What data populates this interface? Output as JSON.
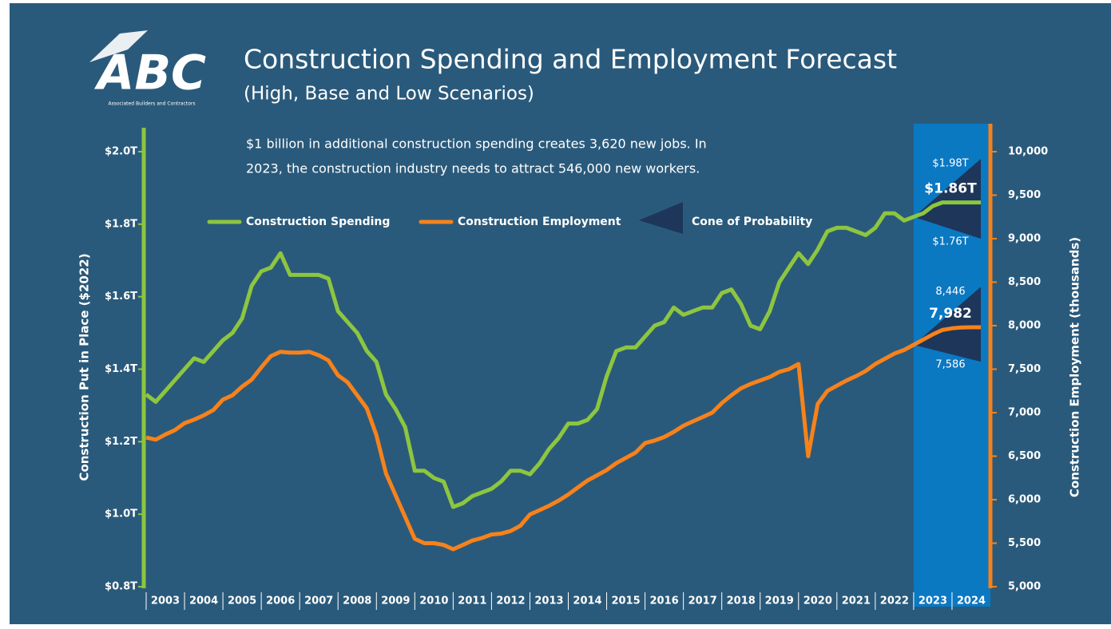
{
  "logo": {
    "text": "ABC",
    "subtext": "Associated Builders and Contractors"
  },
  "chart_data": {
    "type": "line",
    "title": "Construction Spending and Employment Forecast",
    "subtitle": "(High, Base and Low Scenarios)",
    "note": [
      "$1 billion in additional construction spending creates 3,620 new jobs. In",
      "2023, the construction industry needs to attract 546,000 new workers."
    ],
    "ylabel": "Construction Put in Place ($2022)",
    "y2label": "Construction Employment (thousands)",
    "xlim": [
      2003,
      2025
    ],
    "xticks": [
      2003,
      2004,
      2005,
      2006,
      2007,
      2008,
      2009,
      2010,
      2011,
      2012,
      2013,
      2014,
      2015,
      2016,
      2017,
      2018,
      2019,
      2020,
      2021,
      2022,
      2023,
      2024
    ],
    "ylim": [
      0.8,
      2.0
    ],
    "yticks": [
      {
        "value": 0.8,
        "label": "$0.8T"
      },
      {
        "value": 1.0,
        "label": "$1.0T"
      },
      {
        "value": 1.2,
        "label": "$1.2T"
      },
      {
        "value": 1.4,
        "label": "$1.4T"
      },
      {
        "value": 1.6,
        "label": "$1.6T"
      },
      {
        "value": 1.8,
        "label": "$1.8T"
      },
      {
        "value": 2.0,
        "label": "$2.0T"
      }
    ],
    "y2lim": [
      5000,
      10000
    ],
    "y2ticks": [
      {
        "value": 5000,
        "label": "5,000"
      },
      {
        "value": 5500,
        "label": "5,500"
      },
      {
        "value": 6000,
        "label": "6,000"
      },
      {
        "value": 6500,
        "label": "6,500"
      },
      {
        "value": 7000,
        "label": "7,000"
      },
      {
        "value": 7500,
        "label": "7,500"
      },
      {
        "value": 8000,
        "label": "8,000"
      },
      {
        "value": 8500,
        "label": "8,500"
      },
      {
        "value": 9000,
        "label": "9,000"
      },
      {
        "value": 9500,
        "label": "9,500"
      },
      {
        "value": 10000,
        "label": "10,000"
      }
    ],
    "x": [
      2003,
      2003.25,
      2003.5,
      2003.75,
      2004,
      2004.25,
      2004.5,
      2004.75,
      2005,
      2005.25,
      2005.5,
      2005.75,
      2006,
      2006.25,
      2006.5,
      2006.75,
      2007,
      2007.25,
      2007.5,
      2007.75,
      2008,
      2008.25,
      2008.5,
      2008.75,
      2009,
      2009.25,
      2009.5,
      2009.75,
      2010,
      2010.25,
      2010.5,
      2010.75,
      2011,
      2011.25,
      2011.5,
      2011.75,
      2012,
      2012.25,
      2012.5,
      2012.75,
      2013,
      2013.25,
      2013.5,
      2013.75,
      2014,
      2014.25,
      2014.5,
      2014.75,
      2015,
      2015.25,
      2015.5,
      2015.75,
      2016,
      2016.25,
      2016.5,
      2016.75,
      2017,
      2017.25,
      2017.5,
      2017.75,
      2018,
      2018.25,
      2018.5,
      2018.75,
      2019,
      2019.25,
      2019.5,
      2019.75,
      2020,
      2020.25,
      2020.5,
      2020.75,
      2021,
      2021.25,
      2021.5,
      2021.75,
      2022,
      2022.25,
      2022.5,
      2022.75,
      2023,
      2023.25,
      2023.5,
      2023.75,
      2024,
      2024.25,
      2024.5,
      2024.75
    ],
    "series": [
      {
        "name": "Construction Spending",
        "color": "#8dc63f",
        "last_value_label": "$1.86T",
        "values": [
          1.33,
          1.31,
          1.34,
          1.37,
          1.4,
          1.43,
          1.42,
          1.45,
          1.48,
          1.5,
          1.54,
          1.63,
          1.67,
          1.68,
          1.72,
          1.66,
          1.66,
          1.66,
          1.66,
          1.65,
          1.56,
          1.53,
          1.5,
          1.45,
          1.42,
          1.33,
          1.29,
          1.24,
          1.12,
          1.12,
          1.1,
          1.09,
          1.02,
          1.03,
          1.05,
          1.06,
          1.07,
          1.09,
          1.12,
          1.12,
          1.11,
          1.14,
          1.18,
          1.21,
          1.25,
          1.25,
          1.26,
          1.29,
          1.38,
          1.45,
          1.46,
          1.46,
          1.49,
          1.52,
          1.53,
          1.57,
          1.55,
          1.56,
          1.57,
          1.57,
          1.61,
          1.62,
          1.58,
          1.52,
          1.51,
          1.56,
          1.64,
          1.68,
          1.72,
          1.69,
          1.73,
          1.78,
          1.79,
          1.79,
          1.78,
          1.77,
          1.79,
          1.83,
          1.83,
          1.81,
          1.82,
          1.83,
          1.85,
          1.86,
          1.86,
          1.86,
          1.86,
          1.86
        ]
      },
      {
        "name": "Construction Employment",
        "color": "#f7821b",
        "axis": "y2",
        "last_value_label": "7,982",
        "values": [
          6715,
          6690,
          6750,
          6800,
          6880,
          6920,
          6970,
          7030,
          7150,
          7200,
          7300,
          7380,
          7520,
          7650,
          7700,
          7690,
          7690,
          7700,
          7660,
          7600,
          7430,
          7350,
          7200,
          7050,
          6740,
          6300,
          6050,
          5800,
          5550,
          5500,
          5500,
          5480,
          5430,
          5480,
          5530,
          5560,
          5600,
          5610,
          5640,
          5700,
          5830,
          5880,
          5930,
          5990,
          6060,
          6140,
          6220,
          6280,
          6340,
          6420,
          6480,
          6540,
          6650,
          6680,
          6720,
          6780,
          6850,
          6900,
          6950,
          7000,
          7110,
          7200,
          7280,
          7330,
          7370,
          7410,
          7470,
          7500,
          7560,
          6500,
          7100,
          7250,
          7310,
          7370,
          7420,
          7480,
          7560,
          7620,
          7680,
          7720,
          7780,
          7840,
          7900,
          7950,
          7970,
          7980,
          7982,
          7982
        ]
      }
    ],
    "cone": {
      "name": "Cone of Probability",
      "color": "#1d365a",
      "shade": "#0b78c2",
      "x": [
        2023,
        2024.75
      ],
      "parts": [
        {
          "high": [
            1.82,
            1.98
          ],
          "low": [
            1.82,
            1.76
          ],
          "high_label": "$1.98T",
          "low_label": "$1.76T"
        },
        {
          "axis": "y2",
          "high": [
            7780,
            8446
          ],
          "low": [
            7780,
            7586
          ],
          "high_label": "8,446",
          "low_label": "7,586"
        }
      ]
    }
  }
}
